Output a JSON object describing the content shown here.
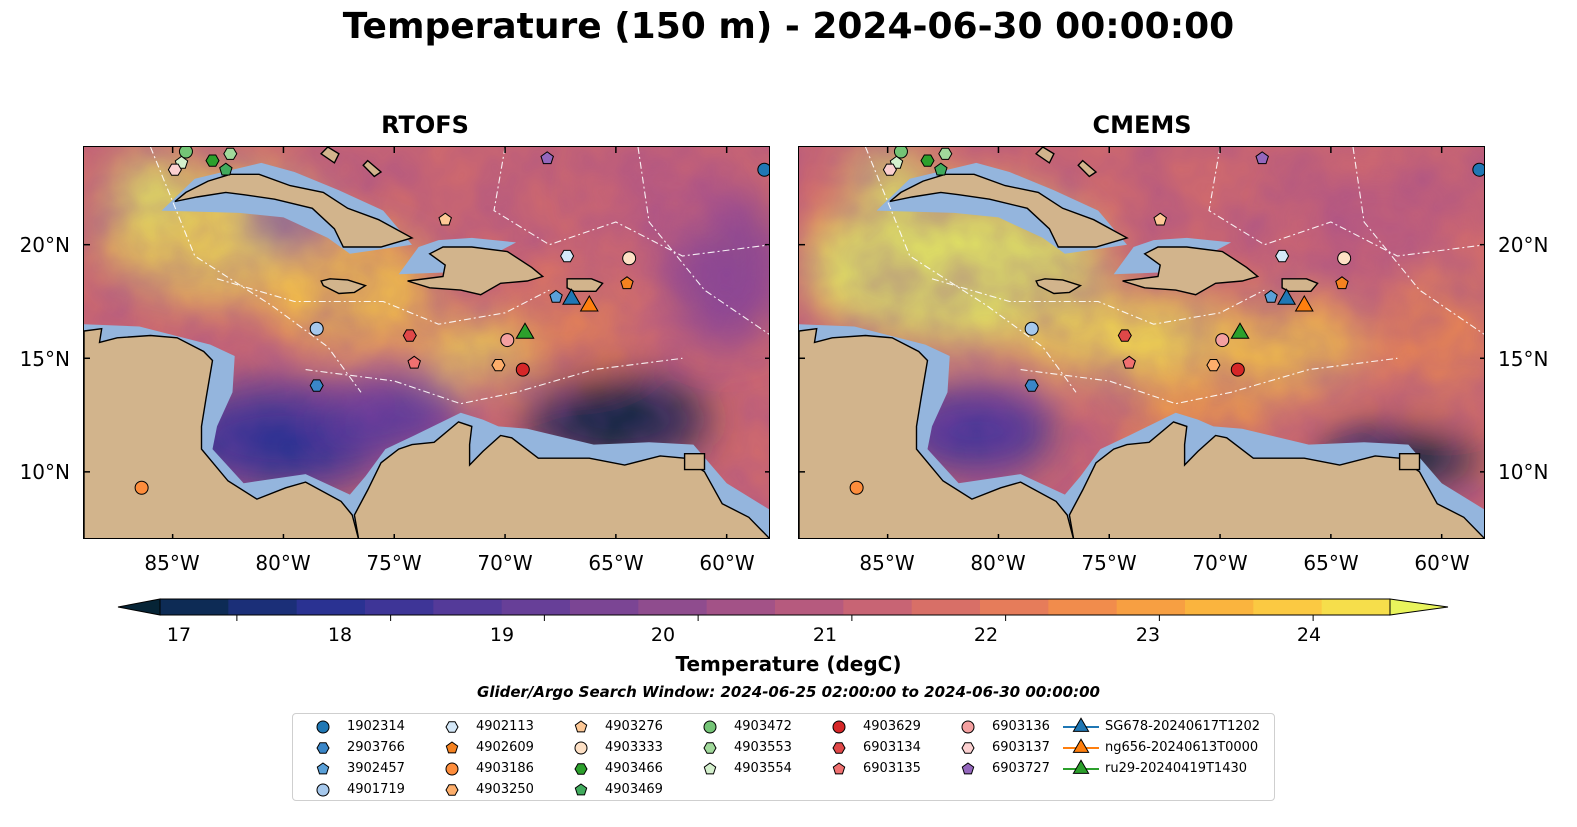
{
  "figure": {
    "title": "Temperature (150 m) - 2024-06-30 00:00:00",
    "panels": [
      {
        "title": "RTOFS",
        "style": "rtofs"
      },
      {
        "title": "CMEMS",
        "style": "cmems"
      }
    ],
    "lat_labels": [
      "20°N",
      "15°N",
      "10°N"
    ],
    "lon_labels": [
      "85°W",
      "80°W",
      "75°W",
      "70°W",
      "65°W",
      "60°W"
    ],
    "map_extent": {
      "lon_min": -89,
      "lon_max": -58,
      "lat_min": 7,
      "lat_max": 24.3
    }
  },
  "colorbar": {
    "label": "Temperature (degC)",
    "min": 16.5,
    "max": 24.5,
    "ticks": [
      "17",
      "18",
      "19",
      "20",
      "21",
      "22",
      "23",
      "24"
    ],
    "colors": [
      "#062436",
      "#0d2b55",
      "#1b2f78",
      "#2a3292",
      "#3e3597",
      "#543a99",
      "#673f98",
      "#7b4594",
      "#8f4c8e",
      "#a35287",
      "#b65a7e",
      "#c86474",
      "#d86f67",
      "#e67c5a",
      "#f18c4c",
      "#f79f42",
      "#fab43e",
      "#fbc942",
      "#f6de4b",
      "#e9f45c"
    ]
  },
  "search_window": "Glider/Argo Search Window: 2024-06-25 02:00:00 to 2024-06-30 00:00:00",
  "legend": [
    {
      "label": "1902314",
      "shape": "circle",
      "color": "#1f77b4"
    },
    {
      "label": "2903766",
      "shape": "hexagon",
      "color": "#3a86c8"
    },
    {
      "label": "3902457",
      "shape": "pentagon",
      "color": "#5aa0d8"
    },
    {
      "label": "4901719",
      "shape": "circle",
      "color": "#a6c8ec"
    },
    {
      "label": "4902113",
      "shape": "hexagon",
      "color": "#d4e8f8"
    },
    {
      "label": "4902609",
      "shape": "pentagon",
      "color": "#f58220"
    },
    {
      "label": "4903186",
      "shape": "circle",
      "color": "#fd8d3c"
    },
    {
      "label": "4903250",
      "shape": "hexagon",
      "color": "#fdae6b"
    },
    {
      "label": "4903276",
      "shape": "pentagon",
      "color": "#fdc896"
    },
    {
      "label": "4903333",
      "shape": "circle",
      "color": "#fde0c5"
    },
    {
      "label": "4903466",
      "shape": "hexagon",
      "color": "#2ca02c"
    },
    {
      "label": "4903469",
      "shape": "pentagon",
      "color": "#41ab5d"
    },
    {
      "label": "4903472",
      "shape": "circle",
      "color": "#74c476"
    },
    {
      "label": "4903553",
      "shape": "hexagon",
      "color": "#a1d99b"
    },
    {
      "label": "4903554",
      "shape": "pentagon",
      "color": "#d4f0cd"
    },
    {
      "label": "4903629",
      "shape": "circle",
      "color": "#d62728"
    },
    {
      "label": "6903134",
      "shape": "hexagon",
      "color": "#e04848"
    },
    {
      "label": "6903135",
      "shape": "pentagon",
      "color": "#f07070"
    },
    {
      "label": "6903136",
      "shape": "circle",
      "color": "#f4a0a0"
    },
    {
      "label": "6903137",
      "shape": "hexagon",
      "color": "#fbd0d0"
    },
    {
      "label": "6903727",
      "shape": "pentagon",
      "color": "#9467bd"
    },
    {
      "label": "SG678-20240617T1202",
      "shape": "triangle",
      "color": "#1f77b4"
    },
    {
      "label": "ng656-20240613T0000",
      "shape": "triangle",
      "color": "#ff7f0e"
    },
    {
      "label": "ru29-20240419T1430",
      "shape": "triangle",
      "color": "#2ca02c"
    }
  ],
  "platforms": [
    {
      "id": "1902314",
      "lon": -58.3,
      "lat": 23.3
    },
    {
      "id": "2903766",
      "lon": -78.5,
      "lat": 13.8
    },
    {
      "id": "3902457",
      "lon": -67.7,
      "lat": 17.7
    },
    {
      "id": "4901719",
      "lon": -78.5,
      "lat": 16.3
    },
    {
      "id": "4902113",
      "lon": -67.2,
      "lat": 19.5
    },
    {
      "id": "4902609",
      "lon": -64.5,
      "lat": 18.3
    },
    {
      "id": "4903186",
      "lon": -86.4,
      "lat": 9.3
    },
    {
      "id": "4903250",
      "lon": -70.3,
      "lat": 14.7
    },
    {
      "id": "4903276",
      "lon": -72.7,
      "lat": 21.1
    },
    {
      "id": "4903333",
      "lon": -64.4,
      "lat": 19.4
    },
    {
      "id": "4903466",
      "lon": -83.2,
      "lat": 23.7
    },
    {
      "id": "4903469",
      "lon": -82.6,
      "lat": 23.3
    },
    {
      "id": "4903472",
      "lon": -84.4,
      "lat": 24.1
    },
    {
      "id": "4903553",
      "lon": -82.4,
      "lat": 24.0
    },
    {
      "id": "4903554",
      "lon": -84.6,
      "lat": 23.6
    },
    {
      "id": "4903629",
      "lon": -69.2,
      "lat": 14.5
    },
    {
      "id": "6903134",
      "lon": -74.3,
      "lat": 16.0
    },
    {
      "id": "6903135",
      "lon": -74.1,
      "lat": 14.8
    },
    {
      "id": "6903136",
      "lon": -69.9,
      "lat": 15.8
    },
    {
      "id": "6903137",
      "lon": -84.9,
      "lat": 23.3
    },
    {
      "id": "6903727",
      "lon": -68.1,
      "lat": 23.8
    },
    {
      "id": "SG678-20240617T1202",
      "lon": -67.0,
      "lat": 17.6
    },
    {
      "id": "ng656-20240613T0000",
      "lon": -66.2,
      "lat": 17.3
    },
    {
      "id": "ru29-20240419T1430",
      "lon": -69.1,
      "lat": 16.1
    }
  ]
}
